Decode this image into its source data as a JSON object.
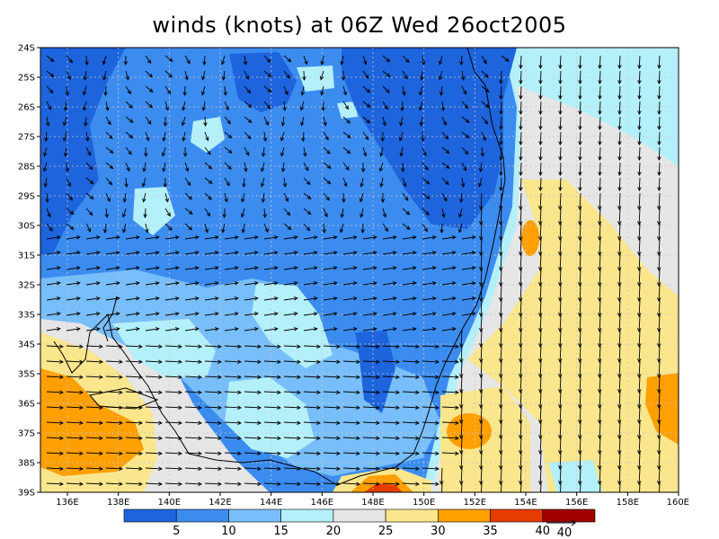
{
  "title": "winds (knots) at 06Z Wed 26oct2005",
  "lat_labels": [
    "24S",
    "25S",
    "26S",
    "27S",
    "28S",
    "29S",
    "30S",
    "31S",
    "32S",
    "33S",
    "34S",
    "35S",
    "36S",
    "37S",
    "38S",
    "39S"
  ],
  "lon_labels": [
    "136E",
    "138E",
    "140E",
    "142E",
    "144E",
    "146E",
    "148E",
    "150E",
    "152E",
    "154E",
    "156E",
    "158E",
    "160E"
  ],
  "colorbar": {
    "colors": [
      "#1e64dc",
      "#3c8cf0",
      "#78befa",
      "#b4f0fa",
      "#e6e6e6",
      "#fae68c",
      "#ffa000",
      "#e63c00",
      "#a00000"
    ],
    "labels": [
      "5",
      "10",
      "15",
      "20",
      "25",
      "30",
      "35",
      "40"
    ]
  },
  "reference_vector": {
    "label": "40"
  },
  "colors": {
    "coast": "#000000",
    "grid": "#c8c8c8",
    "vector": "#000000"
  }
}
